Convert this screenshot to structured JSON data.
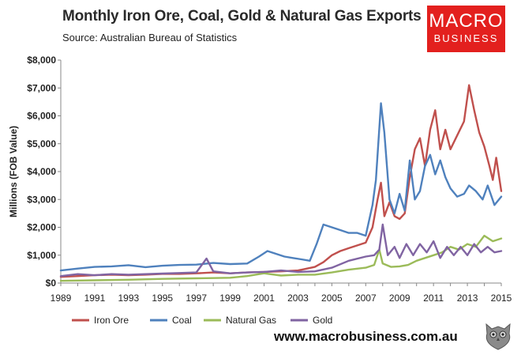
{
  "header": {
    "title": "Monthly Iron Ore, Coal, Gold & Natural Gas Exports",
    "subtitle": "Source: Australian Bureau of Statistics"
  },
  "logo": {
    "line1": "MACRO",
    "line2": "BUSINESS",
    "bg_color": "#e3201e"
  },
  "footer": {
    "website": "www.macrobusiness.com.au",
    "mascot_icon": "owl-icon"
  },
  "chart_data": {
    "type": "line",
    "title": "Monthly Iron Ore, Coal, Gold & Natural Gas Exports",
    "subtitle": "Source: Australian Bureau of Statistics",
    "xlabel": "",
    "ylabel": "Millions (FOB Value)",
    "xlim": [
      1989,
      2015
    ],
    "ylim": [
      0,
      8000
    ],
    "x_ticks": [
      "1989",
      "1991",
      "1993",
      "1995",
      "1997",
      "1999",
      "2001",
      "2003",
      "2005",
      "2007",
      "2009",
      "2011",
      "2013",
      "2015"
    ],
    "y_ticks": [
      "$0",
      "$1,000",
      "$2,000",
      "$3,000",
      "$4,000",
      "$5,000",
      "$6,000",
      "$7,000",
      "$8,000"
    ],
    "legend_position": "bottom",
    "series": [
      {
        "name": "Iron Ore",
        "color": "#c0504d",
        "points": [
          [
            1989,
            220
          ],
          [
            1990,
            250
          ],
          [
            1991,
            280
          ],
          [
            1992,
            300
          ],
          [
            1993,
            280
          ],
          [
            1994,
            300
          ],
          [
            1995,
            330
          ],
          [
            1996,
            330
          ],
          [
            1997,
            350
          ],
          [
            1998,
            380
          ],
          [
            1999,
            350
          ],
          [
            2000,
            380
          ],
          [
            2001,
            400
          ],
          [
            2002,
            420
          ],
          [
            2003,
            450
          ],
          [
            2004,
            580
          ],
          [
            2004.5,
            750
          ],
          [
            2005,
            1000
          ],
          [
            2005.5,
            1150
          ],
          [
            2006,
            1250
          ],
          [
            2006.5,
            1350
          ],
          [
            2007,
            1450
          ],
          [
            2007.4,
            2000
          ],
          [
            2007.7,
            3000
          ],
          [
            2007.9,
            3600
          ],
          [
            2008.1,
            2400
          ],
          [
            2008.4,
            2900
          ],
          [
            2008.7,
            2400
          ],
          [
            2009,
            2300
          ],
          [
            2009.3,
            2500
          ],
          [
            2009.6,
            3800
          ],
          [
            2009.9,
            4800
          ],
          [
            2010.2,
            5200
          ],
          [
            2010.5,
            4200
          ],
          [
            2010.8,
            5500
          ],
          [
            2011.1,
            6200
          ],
          [
            2011.4,
            4800
          ],
          [
            2011.7,
            5500
          ],
          [
            2012,
            4800
          ],
          [
            2012.4,
            5300
          ],
          [
            2012.8,
            5800
          ],
          [
            2013.1,
            7100
          ],
          [
            2013.4,
            6200
          ],
          [
            2013.7,
            5400
          ],
          [
            2014,
            4900
          ],
          [
            2014.3,
            4200
          ],
          [
            2014.5,
            3700
          ],
          [
            2014.7,
            4500
          ],
          [
            2015,
            3300
          ]
        ]
      },
      {
        "name": "Coal",
        "color": "#4f81bd",
        "points": [
          [
            1989,
            450
          ],
          [
            1990,
            520
          ],
          [
            1991,
            580
          ],
          [
            1992,
            600
          ],
          [
            1993,
            640
          ],
          [
            1994,
            570
          ],
          [
            1995,
            620
          ],
          [
            1996,
            650
          ],
          [
            1997,
            660
          ],
          [
            1998,
            720
          ],
          [
            1999,
            680
          ],
          [
            2000,
            700
          ],
          [
            2000.7,
            950
          ],
          [
            2001.2,
            1150
          ],
          [
            2001.7,
            1050
          ],
          [
            2002.2,
            950
          ],
          [
            2002.7,
            900
          ],
          [
            2003.2,
            850
          ],
          [
            2003.7,
            800
          ],
          [
            2004.1,
            1400
          ],
          [
            2004.5,
            2100
          ],
          [
            2005,
            2000
          ],
          [
            2005.5,
            1900
          ],
          [
            2006,
            1800
          ],
          [
            2006.5,
            1800
          ],
          [
            2007,
            1700
          ],
          [
            2007.4,
            2800
          ],
          [
            2007.6,
            3700
          ],
          [
            2007.9,
            6450
          ],
          [
            2008.1,
            5400
          ],
          [
            2008.4,
            3000
          ],
          [
            2008.7,
            2500
          ],
          [
            2009,
            3200
          ],
          [
            2009.3,
            2600
          ],
          [
            2009.6,
            4400
          ],
          [
            2009.9,
            3000
          ],
          [
            2010.2,
            3300
          ],
          [
            2010.5,
            4200
          ],
          [
            2010.8,
            4600
          ],
          [
            2011.1,
            3900
          ],
          [
            2011.4,
            4400
          ],
          [
            2011.7,
            3800
          ],
          [
            2012,
            3400
          ],
          [
            2012.4,
            3100
          ],
          [
            2012.8,
            3200
          ],
          [
            2013.1,
            3500
          ],
          [
            2013.5,
            3300
          ],
          [
            2013.9,
            3000
          ],
          [
            2014.2,
            3500
          ],
          [
            2014.6,
            2800
          ],
          [
            2015,
            3100
          ]
        ]
      },
      {
        "name": "Natural Gas",
        "color": "#9bbb59",
        "points": [
          [
            1989,
            80
          ],
          [
            1991,
            100
          ],
          [
            1993,
            120
          ],
          [
            1995,
            150
          ],
          [
            1997,
            170
          ],
          [
            1999,
            190
          ],
          [
            2000,
            250
          ],
          [
            2001,
            350
          ],
          [
            2002,
            270
          ],
          [
            2003,
            300
          ],
          [
            2004,
            300
          ],
          [
            2005,
            380
          ],
          [
            2006,
            480
          ],
          [
            2007,
            550
          ],
          [
            2007.5,
            650
          ],
          [
            2007.8,
            1200
          ],
          [
            2008,
            700
          ],
          [
            2008.5,
            580
          ],
          [
            2009,
            600
          ],
          [
            2009.5,
            650
          ],
          [
            2010,
            800
          ],
          [
            2010.5,
            900
          ],
          [
            2011,
            1000
          ],
          [
            2011.5,
            1100
          ],
          [
            2012,
            1300
          ],
          [
            2012.5,
            1200
          ],
          [
            2013,
            1400
          ],
          [
            2013.5,
            1300
          ],
          [
            2014,
            1700
          ],
          [
            2014.5,
            1500
          ],
          [
            2015,
            1600
          ]
        ]
      },
      {
        "name": "Gold",
        "color": "#8064a2",
        "points": [
          [
            1989,
            250
          ],
          [
            1990,
            320
          ],
          [
            1991,
            280
          ],
          [
            1992,
            320
          ],
          [
            1993,
            300
          ],
          [
            1994,
            320
          ],
          [
            1995,
            340
          ],
          [
            1996,
            360
          ],
          [
            1997,
            380
          ],
          [
            1997.6,
            880
          ],
          [
            1998,
            420
          ],
          [
            1999,
            350
          ],
          [
            2000,
            380
          ],
          [
            2001,
            400
          ],
          [
            2002,
            450
          ],
          [
            2003,
            400
          ],
          [
            2004,
            420
          ],
          [
            2005,
            550
          ],
          [
            2006,
            800
          ],
          [
            2007,
            950
          ],
          [
            2007.5,
            1000
          ],
          [
            2007.8,
            1200
          ],
          [
            2008,
            2100
          ],
          [
            2008.3,
            1000
          ],
          [
            2008.7,
            1300
          ],
          [
            2009,
            900
          ],
          [
            2009.4,
            1400
          ],
          [
            2009.8,
            1000
          ],
          [
            2010.2,
            1400
          ],
          [
            2010.6,
            1100
          ],
          [
            2011,
            1500
          ],
          [
            2011.4,
            900
          ],
          [
            2011.8,
            1300
          ],
          [
            2012.2,
            1000
          ],
          [
            2012.6,
            1300
          ],
          [
            2013,
            1000
          ],
          [
            2013.4,
            1400
          ],
          [
            2013.8,
            1100
          ],
          [
            2014.2,
            1300
          ],
          [
            2014.6,
            1100
          ],
          [
            2015,
            1150
          ]
        ]
      }
    ]
  }
}
